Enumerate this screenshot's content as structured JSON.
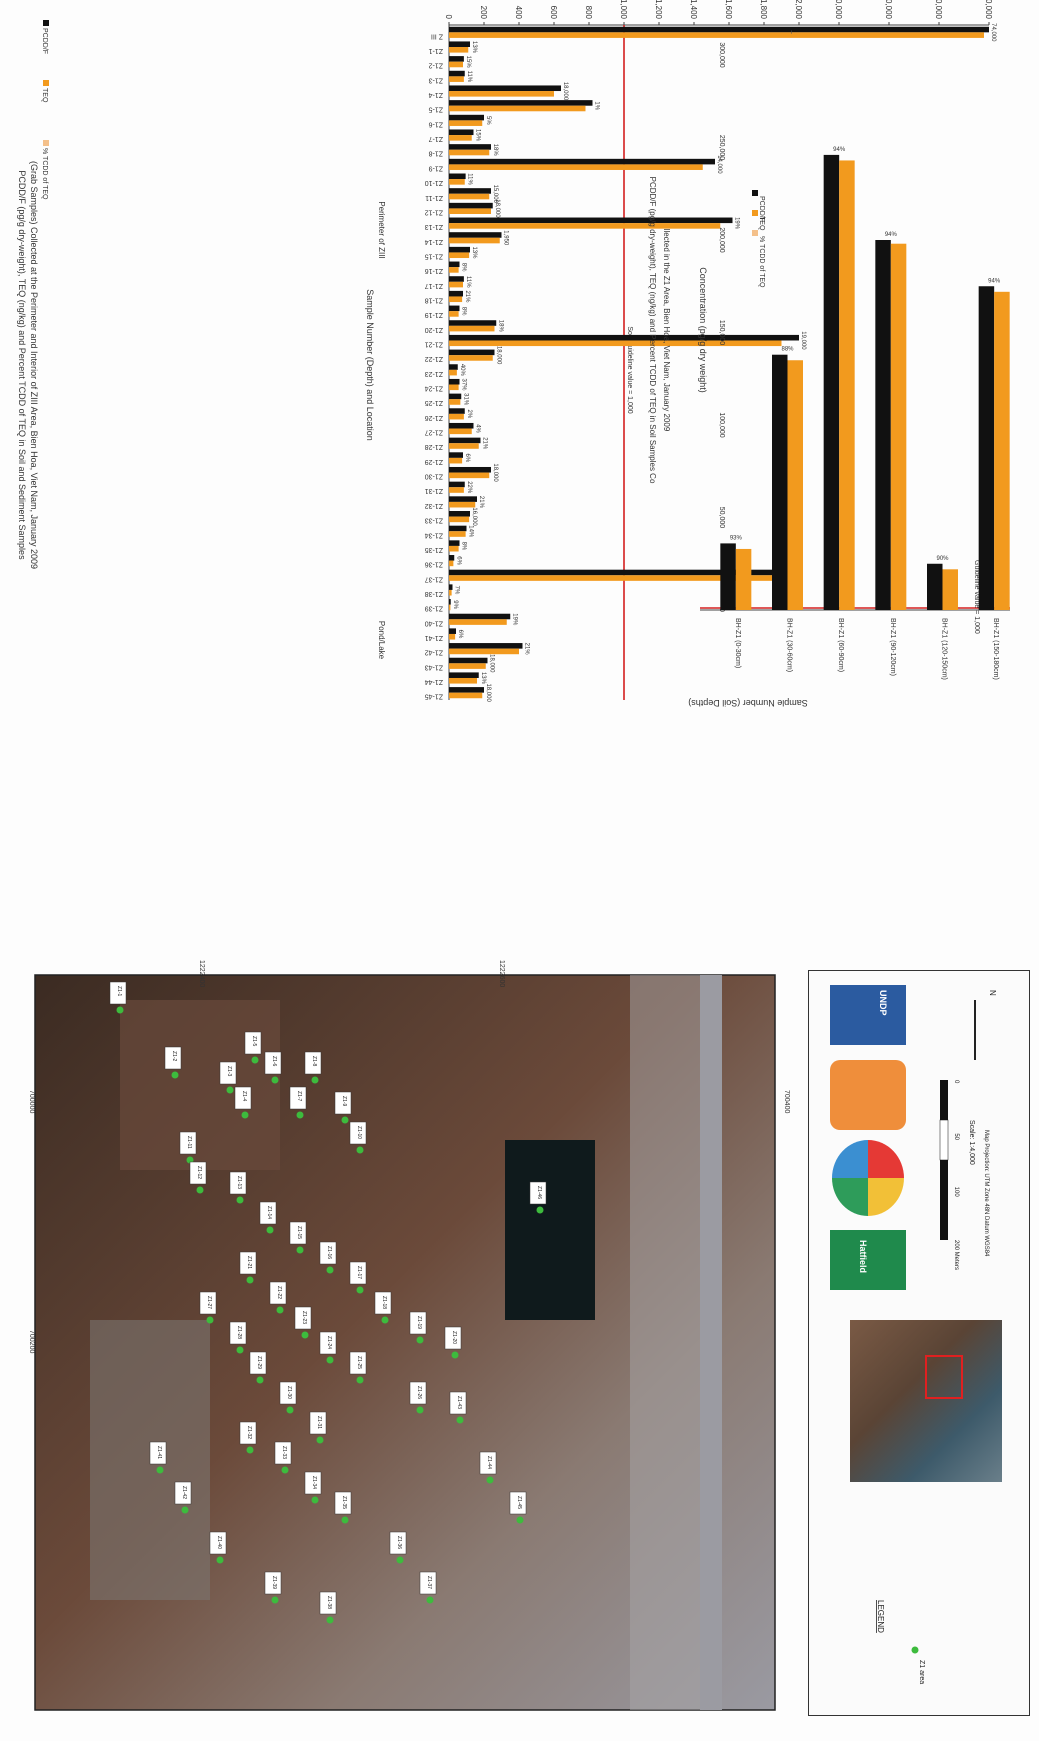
{
  "chart_data": [
    {
      "type": "bar",
      "title": "PCDD/F (pg/g dry-weight), TEQ (ng/kg) and Percent TCDD of TEQ in Soil and Sediment Samples (Grab Samples) Collected at the Perimeter and Interior of ZIII Area, Bien Hoa, Viet Nam, January 2009",
      "xlabel": "Sample Number (Depth) and Location",
      "ylabel": "pg/g dry-weight",
      "ylim": [
        0,
        40000
      ],
      "yticks": [
        "0",
        "200",
        "400",
        "600",
        "800",
        "1,000",
        "1,200",
        "1,400",
        "1,600",
        "1,800",
        "2,000",
        "10,000",
        "20,000",
        "30,000",
        "40,000"
      ],
      "guideline_label": "Soil Guideline value = 1,000",
      "guideline_value": 1000,
      "region_labels": [
        "Perimeter of ZIII",
        "Pond/Lake"
      ],
      "categories": [
        "Z III",
        "Z1-1",
        "Z1-2",
        "Z1-3",
        "Z1-4",
        "Z1-5",
        "Z1-6",
        "Z1-7",
        "Z1-8",
        "Z1-9",
        "Z1-10",
        "Z1-11",
        "Z1-12",
        "Z1-13",
        "Z1-14",
        "Z1-15",
        "Z1-16",
        "Z1-17",
        "Z1-18",
        "Z1-19",
        "Z1-20",
        "Z1-21",
        "Z1-22",
        "Z1-23",
        "Z1-24",
        "Z1-25",
        "Z1-26",
        "Z1-27",
        "Z1-28",
        "Z1-29",
        "Z1-30",
        "Z1-31",
        "Z1-32",
        "Z1-33",
        "Z1-34",
        "Z1-35",
        "Z1-36",
        "Z1-37",
        "Z1-38",
        "Z1-39",
        "Z1-40",
        "Z1-41",
        "Z1-42",
        "Z1-43",
        "Z1-44",
        "Z1-45"
      ],
      "series": [
        {
          "name": "PCDD/F",
          "values": [
            40000,
            120,
            85,
            90,
            640,
            820,
            200,
            140,
            240,
            1520,
            95,
            240,
            250,
            1620,
            300,
            120,
            60,
            85,
            80,
            60,
            270,
            2000,
            260,
            50,
            60,
            70,
            90,
            140,
            180,
            80,
            240,
            90,
            160,
            120,
            100,
            60,
            30,
            1900,
            20,
            10,
            350,
            40,
            420,
            220,
            170,
            200
          ]
        },
        {
          "name": "TEQ",
          "values": [
            39000,
            110,
            80,
            85,
            600,
            780,
            190,
            130,
            230,
            1450,
            90,
            230,
            240,
            1550,
            290,
            115,
            55,
            80,
            75,
            55,
            260,
            1900,
            250,
            45,
            55,
            65,
            85,
            130,
            170,
            75,
            230,
            85,
            150,
            115,
            95,
            55,
            25,
            1850,
            15,
            8,
            330,
            35,
            400,
            210,
            160,
            190
          ]
        }
      ],
      "percent_labels": [
        "74,000",
        "13%",
        "15%",
        "11%",
        "18,000",
        "1%",
        "5%",
        "15%",
        "18%",
        "14,000",
        "11%",
        "15,000",
        "18,000",
        "19%",
        "1,950",
        "13%",
        "8%",
        "11%",
        "21%",
        "8%",
        "18%",
        "19,000",
        "18,000",
        "40%",
        "37%",
        "31%",
        "2%",
        "4%",
        "21%",
        "6%",
        "18,000",
        "22%",
        "21%",
        "16,000",
        "14%",
        "8%",
        "6%",
        "19,000",
        "7%",
        "9%",
        "19%",
        "6%",
        "21%",
        "18,000",
        "13%",
        "18,000"
      ],
      "legend": [
        "PCDD/F",
        "TEQ",
        "% TCDD of TEQ"
      ],
      "legend_position": "top-right"
    },
    {
      "type": "bar",
      "title": "PCDD/F (pg/g dry-weight), TEQ (ng/kg) and Percent TCDD of TEQ in Soil Samples Collected in the Z1 Area, Bien Hoa, Viet Nam, January 2009",
      "xlabel": "Sample Number (Soil Depths)",
      "ylabel": "Concentration (pg/g dry weight)",
      "ylim": [
        0,
        300000
      ],
      "yticks": [
        "0",
        "25,000",
        "50,000",
        "75,000",
        "100,000",
        "125,000",
        "150,000",
        "175,000",
        "200,000",
        "225,000",
        "250,000",
        "275,000",
        "300,000"
      ],
      "guideline_label": "Guideline value = 1,000",
      "categories": [
        "BH-Z1 (0-30cm)",
        "BH-Z1 (30-60cm)",
        "BH-Z1 (60-90cm)",
        "BH-Z1 (90-120cm)",
        "BH-Z1 (120-150cm)",
        "BH-Z1 (150-180cm)"
      ],
      "series": [
        {
          "name": "PCDD/F",
          "values": [
            36000,
            138000,
            246000,
            200000,
            25000,
            175000
          ]
        },
        {
          "name": "TEQ",
          "values": [
            33000,
            135000,
            243000,
            198000,
            22000,
            172000
          ]
        }
      ],
      "percent_labels": [
        "93%",
        "88%",
        "94%",
        "94%",
        "90%",
        "94%"
      ],
      "legend": [
        "PCDD/F",
        "TEQ",
        "% TCDD of TEQ"
      ],
      "legend_position": "top-right"
    }
  ],
  "map": {
    "coord_labels": [
      "700000",
      "700200",
      "700400",
      "1222400",
      "1222600"
    ],
    "legend_title": "LEGEND",
    "legend_item": "Z1 area",
    "scale_label": "Scale: 1:4,000",
    "scale_ticks": [
      "0",
      "50",
      "100",
      "200 Meters"
    ],
    "projection_note": "Map Projection: UTM Zone 48N Datum WGS84",
    "north_label": "N",
    "logos": [
      "Hatfield",
      "UNDP"
    ],
    "sample_labels": [
      "Z1-1",
      "Z1-2",
      "Z1-3",
      "Z1-4",
      "Z1-5",
      "Z1-6",
      "Z1-7",
      "Z1-8",
      "Z1-9",
      "Z1-10",
      "Z1-11",
      "Z1-12",
      "Z1-13",
      "Z1-14",
      "Z1-15",
      "Z1-16",
      "Z1-17",
      "Z1-18",
      "Z1-19",
      "Z1-20",
      "Z1-21",
      "Z1-22",
      "Z1-23",
      "Z1-24",
      "Z1-25",
      "Z1-26",
      "Z1-27",
      "Z1-28",
      "Z1-29",
      "Z1-30",
      "Z1-31",
      "Z1-32",
      "Z1-33",
      "Z1-34",
      "Z1-35",
      "Z1-36",
      "Z1-37",
      "Z1-38",
      "Z1-39",
      "Z1-40",
      "Z1-41",
      "Z1-42",
      "Z1-43",
      "Z1-44",
      "Z1-45",
      "Z1-46"
    ]
  },
  "colors": {
    "pcddf": "#111111",
    "teq": "#f29a1e",
    "guideline": "#d42020",
    "sample_point": "#3dbb3d",
    "map_bg": "#5a3d30"
  }
}
